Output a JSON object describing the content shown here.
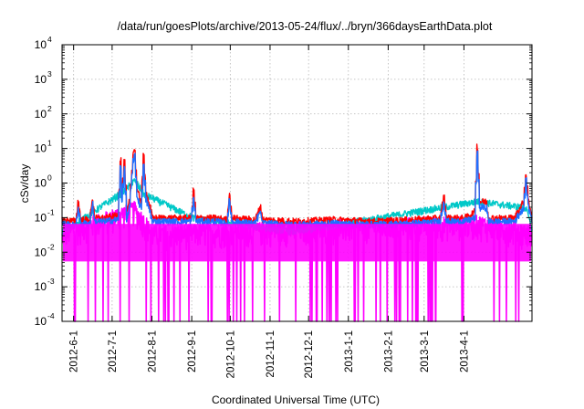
{
  "chart_data": {
    "type": "line",
    "title": "/data/run/goesPlots/archive/2013-05-24/flux/../bryn/366daysEarthData.plot",
    "xlabel": "Coordinated Universal Time (UTC)",
    "ylabel": "cSv/day",
    "yscale": "log",
    "ylim": [
      0.0001,
      10000
    ],
    "xlim": [
      "2012-05-23",
      "2013-05-24"
    ],
    "grid": true,
    "legend": "none",
    "y_ticks": [
      {
        "value": 0.0001,
        "base": "10",
        "exp": "-4"
      },
      {
        "value": 0.001,
        "base": "10",
        "exp": "-3"
      },
      {
        "value": 0.01,
        "base": "10",
        "exp": "-2"
      },
      {
        "value": 0.1,
        "base": "10",
        "exp": "-1"
      },
      {
        "value": 1,
        "base": "10",
        "exp": "0"
      },
      {
        "value": 10,
        "base": "10",
        "exp": "1"
      },
      {
        "value": 100,
        "base": "10",
        "exp": "2"
      },
      {
        "value": 1000,
        "base": "10",
        "exp": "3"
      },
      {
        "value": 10000,
        "base": "10",
        "exp": "4"
      }
    ],
    "x_ticks": [
      {
        "date": "2012-06-01",
        "label": "2012-6-1"
      },
      {
        "date": "2012-07-01",
        "label": "2012-7-1"
      },
      {
        "date": "2012-08-01",
        "label": "2012-8-1"
      },
      {
        "date": "2012-09-01",
        "label": "2012-9-1"
      },
      {
        "date": "2012-10-01",
        "label": "2012-10-1"
      },
      {
        "date": "2012-11-01",
        "label": "2012-11-1"
      },
      {
        "date": "2012-12-01",
        "label": "2012-12-1"
      },
      {
        "date": "2013-01-01",
        "label": "2013-1-1"
      },
      {
        "date": "2013-02-01",
        "label": "2013-2-1"
      },
      {
        "date": "2013-03-01",
        "label": "2013-3-1"
      },
      {
        "date": "2013-04-01",
        "label": "2013-4-1"
      }
    ],
    "series": [
      {
        "color": "#ff0000",
        "points": [
          [
            "2012-05-23",
            0.09
          ],
          [
            "2012-06-02",
            0.08
          ],
          [
            "2012-06-04",
            0.3
          ],
          [
            "2012-06-06",
            0.09
          ],
          [
            "2012-06-13",
            0.09
          ],
          [
            "2012-06-15",
            0.35
          ],
          [
            "2012-06-17",
            0.1
          ],
          [
            "2012-06-25",
            0.1
          ],
          [
            "2012-07-05",
            0.12
          ],
          [
            "2012-07-07",
            5
          ],
          [
            "2012-07-08",
            0.5
          ],
          [
            "2012-07-10",
            4
          ],
          [
            "2012-07-12",
            0.15
          ],
          [
            "2012-07-14",
            0.3
          ],
          [
            "2012-07-17",
            8
          ],
          [
            "2012-07-18",
            10
          ],
          [
            "2012-07-20",
            0.6
          ],
          [
            "2012-07-23",
            0.3
          ],
          [
            "2012-07-25",
            6
          ],
          [
            "2012-07-27",
            0.5
          ],
          [
            "2012-07-30",
            0.2
          ],
          [
            "2012-08-01",
            0.1
          ],
          [
            "2012-08-15",
            0.1
          ],
          [
            "2012-08-31",
            0.1
          ],
          [
            "2012-09-02",
            0.6
          ],
          [
            "2012-09-04",
            0.1
          ],
          [
            "2012-09-20",
            0.1
          ],
          [
            "2012-09-28",
            0.09
          ],
          [
            "2012-09-30",
            0.5
          ],
          [
            "2012-10-02",
            0.1
          ],
          [
            "2012-10-20",
            0.09
          ],
          [
            "2012-10-24",
            0.2
          ],
          [
            "2012-10-26",
            0.09
          ],
          [
            "2012-11-20",
            0.08
          ],
          [
            "2012-12-20",
            0.09
          ],
          [
            "2013-01-20",
            0.08
          ],
          [
            "2013-02-20",
            0.09
          ],
          [
            "2013-03-13",
            0.1
          ],
          [
            "2013-03-16",
            0.4
          ],
          [
            "2013-03-18",
            0.1
          ],
          [
            "2013-04-01",
            0.1
          ],
          [
            "2013-04-09",
            0.15
          ],
          [
            "2013-04-11",
            12
          ],
          [
            "2013-04-13",
            0.3
          ],
          [
            "2013-04-18",
            0.3
          ],
          [
            "2013-04-20",
            0.1
          ],
          [
            "2013-05-10",
            0.1
          ],
          [
            "2013-05-17",
            0.3
          ],
          [
            "2013-05-19",
            1.8
          ],
          [
            "2013-05-21",
            0.3
          ],
          [
            "2013-05-24",
            0.1
          ]
        ]
      },
      {
        "color": "#1f6fff",
        "points": [
          [
            "2012-05-23",
            0.07
          ],
          [
            "2012-06-02",
            0.06
          ],
          [
            "2012-06-04",
            0.2
          ],
          [
            "2012-06-06",
            0.07
          ],
          [
            "2012-06-13",
            0.07
          ],
          [
            "2012-06-15",
            0.25
          ],
          [
            "2012-06-17",
            0.08
          ],
          [
            "2012-06-25",
            0.08
          ],
          [
            "2012-07-05",
            0.09
          ],
          [
            "2012-07-07",
            3
          ],
          [
            "2012-07-08",
            0.35
          ],
          [
            "2012-07-10",
            2.5
          ],
          [
            "2012-07-12",
            0.1
          ],
          [
            "2012-07-14",
            0.2
          ],
          [
            "2012-07-17",
            5
          ],
          [
            "2012-07-18",
            6
          ],
          [
            "2012-07-20",
            0.4
          ],
          [
            "2012-07-23",
            0.2
          ],
          [
            "2012-07-25",
            3
          ],
          [
            "2012-07-27",
            0.35
          ],
          [
            "2012-07-30",
            0.15
          ],
          [
            "2012-08-01",
            0.08
          ],
          [
            "2012-08-15",
            0.08
          ],
          [
            "2012-08-31",
            0.08
          ],
          [
            "2012-09-02",
            0.35
          ],
          [
            "2012-09-04",
            0.08
          ],
          [
            "2012-09-20",
            0.08
          ],
          [
            "2012-09-28",
            0.07
          ],
          [
            "2012-09-30",
            0.3
          ],
          [
            "2012-10-02",
            0.08
          ],
          [
            "2012-10-20",
            0.07
          ],
          [
            "2012-10-24",
            0.15
          ],
          [
            "2012-10-26",
            0.07
          ],
          [
            "2012-11-20",
            0.065
          ],
          [
            "2012-12-20",
            0.07
          ],
          [
            "2013-01-20",
            0.065
          ],
          [
            "2013-02-20",
            0.07
          ],
          [
            "2013-03-13",
            0.08
          ],
          [
            "2013-03-16",
            0.3
          ],
          [
            "2013-03-18",
            0.08
          ],
          [
            "2013-04-01",
            0.08
          ],
          [
            "2013-04-09",
            0.1
          ],
          [
            "2013-04-11",
            8
          ],
          [
            "2013-04-13",
            0.2
          ],
          [
            "2013-04-18",
            0.2
          ],
          [
            "2013-04-20",
            0.08
          ],
          [
            "2013-05-10",
            0.08
          ],
          [
            "2013-05-17",
            0.2
          ],
          [
            "2013-05-19",
            1.2
          ],
          [
            "2013-05-21",
            0.2
          ],
          [
            "2013-05-24",
            0.08
          ]
        ]
      },
      {
        "color": "#00c8c8",
        "points": [
          [
            "2012-05-23",
            0.04
          ],
          [
            "2012-07-07",
            0.5
          ],
          [
            "2012-07-10",
            0.6
          ],
          [
            "2012-07-18",
            1.2
          ],
          [
            "2012-07-25",
            0.5
          ],
          [
            "2012-09-02",
            0.1
          ],
          [
            "2012-11-20",
            0.04
          ],
          [
            "2013-04-11",
            0.3
          ],
          [
            "2013-05-19",
            0.2
          ],
          [
            "2013-05-24",
            0.04
          ]
        ]
      },
      {
        "color": "#ff00ff",
        "points": [
          [
            "2012-05-23",
            0.03
          ],
          [
            "2012-07-18",
            0.15
          ],
          [
            "2012-08-01",
            0.03
          ],
          [
            "2013-04-11",
            0.06
          ],
          [
            "2013-05-24",
            0.03
          ]
        ]
      }
    ]
  }
}
